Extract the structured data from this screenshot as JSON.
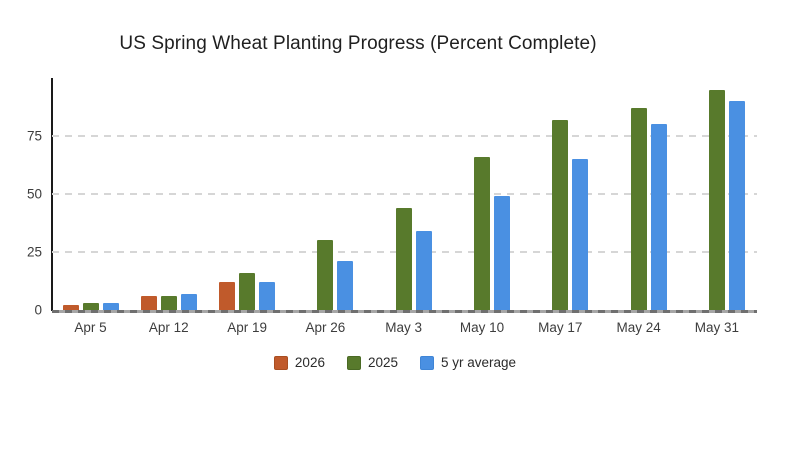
{
  "chart_data": {
    "type": "bar",
    "title": "US Spring Wheat Planting Progress (Percent Complete)",
    "categories": [
      "Apr 5",
      "Apr 12",
      "Apr 19",
      "Apr 26",
      "May 3",
      "May 10",
      "May 17",
      "May 24",
      "May 31"
    ],
    "series": [
      {
        "name": "2026",
        "color": "#c05a2b",
        "stroke": "#a84e21",
        "values": [
          2,
          6,
          12,
          null,
          null,
          null,
          null,
          null,
          null
        ]
      },
      {
        "name": "2025",
        "color": "#587a2c",
        "stroke": "#4a6a24",
        "values": [
          3,
          6,
          16,
          30,
          44,
          66,
          82,
          87,
          95
        ]
      },
      {
        "name": "5 yr average",
        "color": "#4a90e2",
        "stroke": "#3f85d6",
        "values": [
          3,
          7,
          12,
          21,
          34,
          49,
          65,
          80,
          90
        ]
      }
    ],
    "xlabel": "",
    "ylabel": "",
    "ylim": [
      0,
      100
    ],
    "yticks": [
      0,
      25,
      50,
      75
    ],
    "grid": "horizontal-dashed",
    "legend_position": "bottom",
    "background_color": "#ffffff",
    "gridline_color": "#d6d6d6",
    "axis_color": "#1a1a1a"
  }
}
